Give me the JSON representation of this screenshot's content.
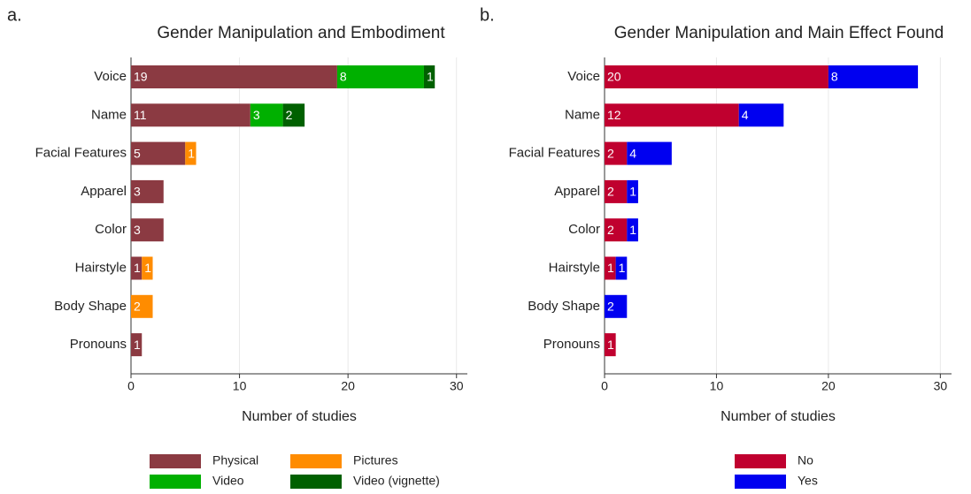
{
  "chart_data": [
    {
      "type": "stacked_barh",
      "panel_label": "a.",
      "title": "Gender Manipulation and Embodiment",
      "xlabel": "Number of studies",
      "categories": [
        "Voice",
        "Name",
        "Facial Features",
        "Apparel",
        "Color",
        "Hairstyle",
        "Body Shape",
        "Pronouns"
      ],
      "series": [
        {
          "name": "Physical",
          "color": "#8b3a42",
          "values": [
            19,
            11,
            5,
            3,
            3,
            1,
            0,
            1
          ]
        },
        {
          "name": "Pictures",
          "color": "#ff8c00",
          "values": [
            0,
            0,
            1,
            0,
            0,
            1,
            2,
            0
          ]
        },
        {
          "name": "Video",
          "color": "#00b000",
          "values": [
            8,
            3,
            0,
            0,
            0,
            0,
            0,
            0
          ]
        },
        {
          "name": "Video (vignette)",
          "color": "#006000",
          "values": [
            1,
            2,
            0,
            0,
            0,
            0,
            0,
            0
          ]
        }
      ],
      "xlim": [
        0,
        31
      ],
      "xticks": [
        0,
        10,
        20,
        30
      ],
      "grid": true
    },
    {
      "type": "stacked_barh",
      "panel_label": "b.",
      "title": "Gender Manipulation and Main Effect Found",
      "xlabel": "Number of studies",
      "categories": [
        "Voice",
        "Name",
        "Facial Features",
        "Apparel",
        "Color",
        "Hairstyle",
        "Body Shape",
        "Pronouns"
      ],
      "series": [
        {
          "name": "No",
          "color": "#c0002f",
          "values": [
            20,
            12,
            2,
            2,
            2,
            1,
            0,
            1
          ]
        },
        {
          "name": "Yes",
          "color": "#0000f0",
          "values": [
            8,
            4,
            4,
            1,
            1,
            1,
            2,
            0
          ]
        }
      ],
      "xlim": [
        0,
        31
      ],
      "xticks": [
        0,
        10,
        20,
        30
      ],
      "grid": true
    }
  ]
}
